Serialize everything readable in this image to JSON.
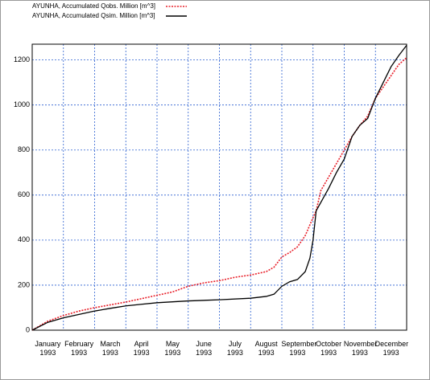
{
  "chart_data": {
    "type": "line",
    "x_labels": [
      "January 1993",
      "February 1993",
      "March 1993",
      "April 1993",
      "May 1993",
      "June 1993",
      "July 1993",
      "August 1993",
      "September 1993",
      "October 1993",
      "November 1993",
      "December 1993"
    ],
    "xlim": [
      0,
      12
    ],
    "xticks": [
      0,
      1,
      2,
      3,
      4,
      5,
      6,
      7,
      8,
      9,
      10,
      11,
      12
    ],
    "ylim": [
      0,
      1270
    ],
    "yticks": [
      0,
      200,
      400,
      600,
      800,
      1000,
      1200
    ],
    "grid": true,
    "series": [
      {
        "name": "AYUNHA, Accumulated Qobs. Million [m^3]",
        "color": "#e8202a",
        "dashed": true,
        "x": [
          0,
          0.5,
          1,
          1.5,
          2,
          3,
          3.5,
          4,
          4.5,
          5,
          5.5,
          6,
          6.5,
          7,
          7.5,
          7.75,
          8,
          8.25,
          8.5,
          8.75,
          9,
          9.1,
          9.25,
          9.5,
          9.75,
          10,
          10.25,
          10.5,
          10.75,
          11,
          11.25,
          11.5,
          11.75,
          12
        ],
        "values": [
          0,
          40,
          65,
          85,
          100,
          125,
          140,
          155,
          170,
          195,
          210,
          220,
          235,
          245,
          260,
          280,
          325,
          345,
          370,
          420,
          500,
          530,
          620,
          680,
          740,
          800,
          860,
          910,
          950,
          1030,
          1080,
          1130,
          1180,
          1210
        ]
      },
      {
        "name": "AYUNHA, Accumulated Qsim. Million [m^3]",
        "color": "#000000",
        "dashed": false,
        "x": [
          0,
          0.5,
          1,
          1.5,
          2,
          2.5,
          3,
          3.5,
          4,
          5,
          6,
          7,
          7.5,
          7.75,
          8,
          8.25,
          8.5,
          8.75,
          8.9,
          9,
          9.1,
          9.3,
          9.5,
          9.75,
          10,
          10.25,
          10.5,
          10.75,
          11,
          11.25,
          11.5,
          11.75,
          12
        ],
        "values": [
          0,
          35,
          55,
          70,
          85,
          97,
          108,
          115,
          122,
          130,
          135,
          142,
          150,
          160,
          195,
          215,
          225,
          260,
          320,
          400,
          530,
          580,
          630,
          700,
          760,
          860,
          910,
          940,
          1030,
          1100,
          1170,
          1220,
          1265
        ]
      }
    ]
  }
}
